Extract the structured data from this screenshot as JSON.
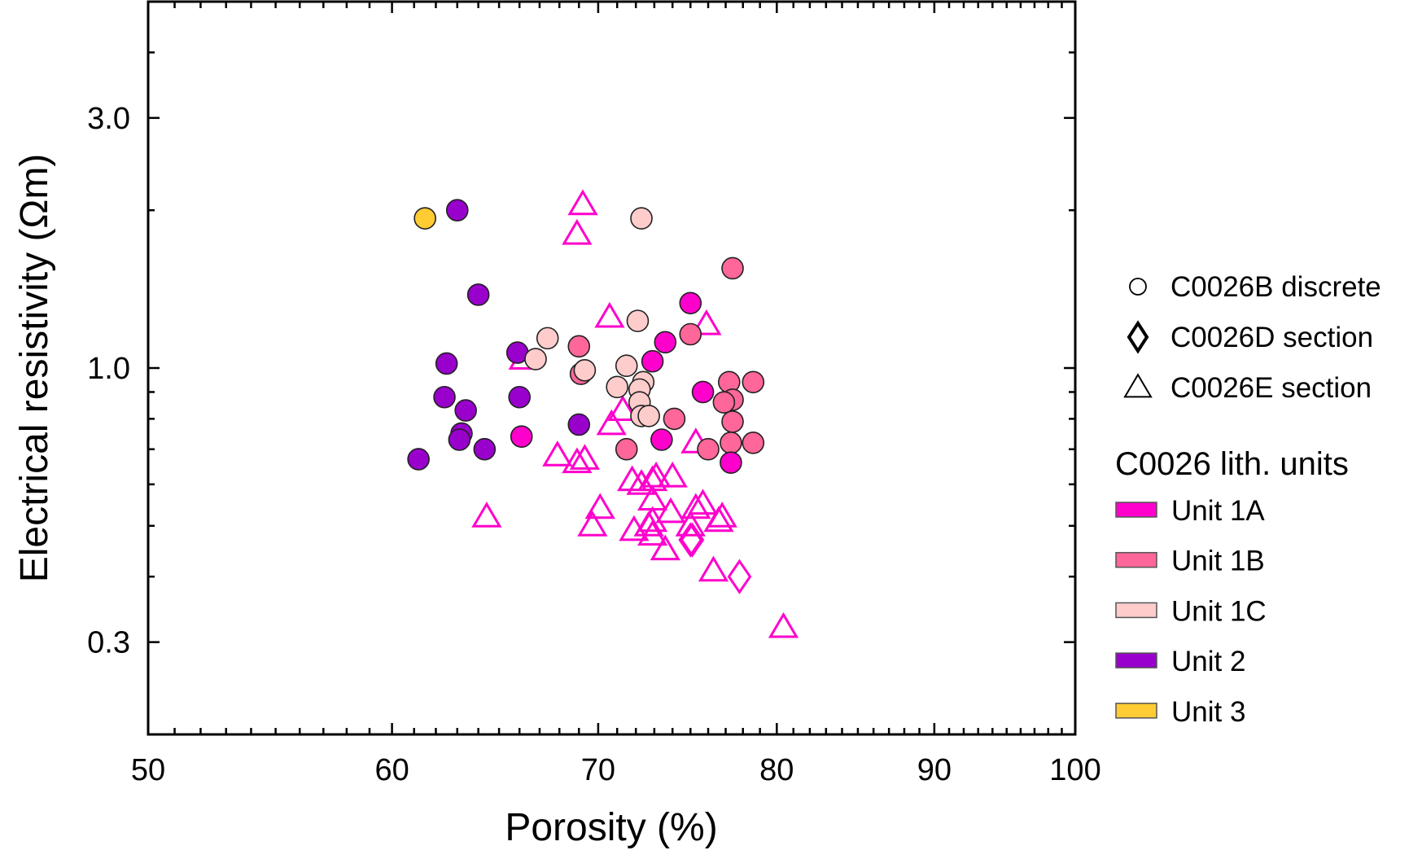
{
  "chart_data": {
    "type": "scatter",
    "title": "",
    "xlabel": "Porosity (%)",
    "ylabel": "Electrical resistivity (Ωm)",
    "xscale": "log",
    "yscale": "log",
    "xlim": [
      50,
      100
    ],
    "ylim": [
      0.2,
      5.0
    ],
    "grid": false,
    "x_ticks": [
      {
        "value": 50,
        "label": "50"
      },
      {
        "value": 60,
        "label": "60"
      },
      {
        "value": 70,
        "label": "70"
      },
      {
        "value": 80,
        "label": "80"
      },
      {
        "value": 90,
        "label": "90"
      },
      {
        "value": 100,
        "label": "100"
      }
    ],
    "y_ticks": [
      {
        "value": 0.3,
        "label": "0.3"
      },
      {
        "value": 1.0,
        "label": "1.0"
      },
      {
        "value": 3.0,
        "label": "3.0"
      }
    ],
    "units": {
      "Unit 1A": "#FF00CC",
      "Unit 1B": "#FF6699",
      "Unit 1C": "#FFCCCC",
      "Unit 2": "#9900CC",
      "Unit 3": "#FFCC33"
    },
    "legend": {
      "placement": "right",
      "markers": [
        {
          "symbol": "circle",
          "label": "C0026B discrete"
        },
        {
          "symbol": "diamond",
          "label": "C0026D section"
        },
        {
          "symbol": "triangle",
          "label": "C0026E section"
        }
      ],
      "units_title": "C0026 lith. units",
      "units": [
        {
          "label": "Unit 1A",
          "color": "#FF00CC"
        },
        {
          "label": "Unit 1B",
          "color": "#FF6699"
        },
        {
          "label": "Unit 1C",
          "color": "#FFCCCC"
        },
        {
          "label": "Unit 2",
          "color": "#9900CC"
        },
        {
          "label": "Unit 3",
          "color": "#FFCC33"
        }
      ]
    },
    "series": [
      {
        "name": "C0026E section",
        "symbol": "triangle",
        "unit": "Unit 1A",
        "points": [
          [
            69.2,
            2.05
          ],
          [
            68.9,
            1.8
          ],
          [
            70.6,
            1.25
          ],
          [
            75.9,
            1.21
          ],
          [
            66.2,
            1.04
          ],
          [
            71.3,
            0.83
          ],
          [
            70.7,
            0.78
          ],
          [
            75.3,
            0.72
          ],
          [
            67.9,
            0.68
          ],
          [
            68.9,
            0.66
          ],
          [
            69.3,
            0.67
          ],
          [
            64.4,
            0.52
          ],
          [
            70.1,
            0.54
          ],
          [
            69.7,
            0.5
          ],
          [
            71.8,
            0.61
          ],
          [
            72.3,
            0.6
          ],
          [
            72.9,
            0.61
          ],
          [
            73.1,
            0.62
          ],
          [
            74.0,
            0.62
          ],
          [
            72.9,
            0.56
          ],
          [
            73.9,
            0.53
          ],
          [
            72.9,
            0.51
          ],
          [
            71.9,
            0.49
          ],
          [
            72.7,
            0.5
          ],
          [
            75.3,
            0.54
          ],
          [
            75.7,
            0.55
          ],
          [
            75.0,
            0.5
          ],
          [
            76.8,
            0.52
          ],
          [
            76.6,
            0.51
          ],
          [
            73.6,
            0.45
          ],
          [
            72.9,
            0.48
          ],
          [
            76.3,
            0.41
          ],
          [
            80.4,
            0.32
          ]
        ]
      },
      {
        "name": "C0026D section",
        "symbol": "diamond",
        "unit": "Unit 1A",
        "points": [
          [
            75.0,
            0.47
          ],
          [
            75.1,
            0.47
          ],
          [
            77.8,
            0.4
          ]
        ]
      },
      {
        "name": "C0026B discrete",
        "symbol": "circle",
        "unit": "Unit 2",
        "points": [
          [
            63.0,
            2.0
          ],
          [
            64.0,
            1.38
          ],
          [
            62.5,
            1.02
          ],
          [
            65.9,
            1.07
          ],
          [
            62.4,
            0.88
          ],
          [
            63.4,
            0.83
          ],
          [
            66.0,
            0.88
          ],
          [
            63.2,
            0.75
          ],
          [
            63.1,
            0.73
          ],
          [
            64.3,
            0.7
          ],
          [
            61.2,
            0.67
          ],
          [
            69.0,
            0.78
          ]
        ]
      },
      {
        "name": "C0026B discrete",
        "symbol": "circle",
        "unit": "Unit 1B",
        "points": [
          [
            77.4,
            1.55
          ],
          [
            75.0,
            1.16
          ],
          [
            69.0,
            1.1
          ],
          [
            69.1,
            0.975
          ],
          [
            74.1,
            0.8
          ],
          [
            71.5,
            0.7
          ],
          [
            77.2,
            0.94
          ],
          [
            78.6,
            0.94
          ],
          [
            77.4,
            0.87
          ],
          [
            76.9,
            0.86
          ],
          [
            77.4,
            0.79
          ],
          [
            77.3,
            0.72
          ],
          [
            78.6,
            0.72
          ],
          [
            76.0,
            0.7
          ]
        ]
      },
      {
        "name": "C0026B discrete",
        "symbol": "circle",
        "unit": "Unit 1C",
        "points": [
          [
            72.3,
            1.93
          ],
          [
            67.4,
            1.14
          ],
          [
            66.8,
            1.04
          ],
          [
            69.3,
            0.99
          ],
          [
            72.1,
            1.23
          ],
          [
            71.5,
            1.01
          ],
          [
            71.0,
            0.92
          ],
          [
            72.4,
            0.94
          ],
          [
            72.2,
            0.91
          ],
          [
            72.2,
            0.86
          ],
          [
            72.3,
            0.81
          ],
          [
            72.7,
            0.81
          ]
        ]
      },
      {
        "name": "C0026B discrete",
        "symbol": "circle",
        "unit": "Unit 1A",
        "points": [
          [
            66.1,
            0.74
          ],
          [
            75.0,
            1.33
          ],
          [
            73.6,
            1.12
          ],
          [
            72.9,
            1.03
          ],
          [
            75.7,
            0.9
          ],
          [
            73.4,
            0.73
          ],
          [
            77.3,
            0.66
          ]
        ]
      },
      {
        "name": "C0026B discrete",
        "symbol": "circle",
        "unit": "Unit 3",
        "points": [
          [
            61.5,
            1.93
          ]
        ]
      }
    ]
  }
}
